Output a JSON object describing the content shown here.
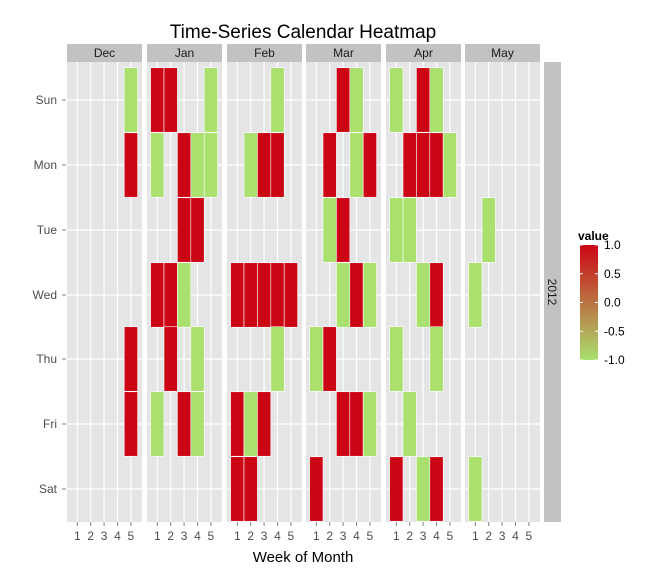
{
  "chart_data": {
    "type": "heatmap",
    "title": "Time-Series Calendar Heatmap",
    "xlabel": "Week of Month",
    "ylabel": "",
    "facet_row_label": "2012",
    "months": [
      "Dec",
      "Jan",
      "Feb",
      "Mar",
      "Apr",
      "May"
    ],
    "weekdays": [
      "Sun",
      "Mon",
      "Tue",
      "Wed",
      "Thu",
      "Fri",
      "Sat"
    ],
    "week_ticks": [
      "1",
      "2",
      "3",
      "4",
      "5"
    ],
    "legend": {
      "title": "value",
      "ticks": [
        "1.0",
        "0.5",
        "0.0",
        "-0.5",
        "-1.0"
      ],
      "tick_values": [
        1.0,
        0.5,
        0.0,
        -0.5,
        -1.0
      ],
      "range": [
        -1.0,
        1.0
      ],
      "low_color": "#a9e06e",
      "high_color": "#cc0515",
      "position": "right"
    },
    "colors": {
      "panel_bg": "#e5e5e5",
      "grid_line": "#ffffff",
      "strip_bg": "#c2c2c2",
      "tile_border": "#ffffff"
    },
    "cells": [
      {
        "month": "Dec",
        "weekday": "Sun",
        "week": 5,
        "value": -1
      },
      {
        "month": "Dec",
        "weekday": "Mon",
        "week": 5,
        "value": 1
      },
      {
        "month": "Dec",
        "weekday": "Thu",
        "week": 5,
        "value": 1
      },
      {
        "month": "Dec",
        "weekday": "Fri",
        "week": 5,
        "value": 1
      },
      {
        "month": "Jan",
        "weekday": "Sun",
        "week": 1,
        "value": 1
      },
      {
        "month": "Jan",
        "weekday": "Sun",
        "week": 2,
        "value": 1
      },
      {
        "month": "Jan",
        "weekday": "Sun",
        "week": 5,
        "value": -1
      },
      {
        "month": "Jan",
        "weekday": "Mon",
        "week": 1,
        "value": -1
      },
      {
        "month": "Jan",
        "weekday": "Mon",
        "week": 3,
        "value": 1
      },
      {
        "month": "Jan",
        "weekday": "Mon",
        "week": 4,
        "value": -1
      },
      {
        "month": "Jan",
        "weekday": "Mon",
        "week": 5,
        "value": -1
      },
      {
        "month": "Jan",
        "weekday": "Tue",
        "week": 3,
        "value": 1
      },
      {
        "month": "Jan",
        "weekday": "Tue",
        "week": 4,
        "value": 1
      },
      {
        "month": "Jan",
        "weekday": "Wed",
        "week": 1,
        "value": 1
      },
      {
        "month": "Jan",
        "weekday": "Wed",
        "week": 2,
        "value": 1
      },
      {
        "month": "Jan",
        "weekday": "Wed",
        "week": 3,
        "value": -1
      },
      {
        "month": "Jan",
        "weekday": "Thu",
        "week": 2,
        "value": 1
      },
      {
        "month": "Jan",
        "weekday": "Thu",
        "week": 4,
        "value": -1
      },
      {
        "month": "Jan",
        "weekday": "Fri",
        "week": 1,
        "value": -1
      },
      {
        "month": "Jan",
        "weekday": "Fri",
        "week": 3,
        "value": 1
      },
      {
        "month": "Jan",
        "weekday": "Fri",
        "week": 4,
        "value": -1
      },
      {
        "month": "Feb",
        "weekday": "Sun",
        "week": 4,
        "value": -1
      },
      {
        "month": "Feb",
        "weekday": "Mon",
        "week": 2,
        "value": -1
      },
      {
        "month": "Feb",
        "weekday": "Mon",
        "week": 3,
        "value": 1
      },
      {
        "month": "Feb",
        "weekday": "Mon",
        "week": 4,
        "value": 1
      },
      {
        "month": "Feb",
        "weekday": "Wed",
        "week": 1,
        "value": 1
      },
      {
        "month": "Feb",
        "weekday": "Wed",
        "week": 2,
        "value": 1
      },
      {
        "month": "Feb",
        "weekday": "Wed",
        "week": 3,
        "value": 1
      },
      {
        "month": "Feb",
        "weekday": "Wed",
        "week": 4,
        "value": 1
      },
      {
        "month": "Feb",
        "weekday": "Wed",
        "week": 5,
        "value": 1
      },
      {
        "month": "Feb",
        "weekday": "Thu",
        "week": 4,
        "value": -1
      },
      {
        "month": "Feb",
        "weekday": "Fri",
        "week": 1,
        "value": 1
      },
      {
        "month": "Feb",
        "weekday": "Fri",
        "week": 2,
        "value": -1
      },
      {
        "month": "Feb",
        "weekday": "Fri",
        "week": 3,
        "value": 1
      },
      {
        "month": "Feb",
        "weekday": "Sat",
        "week": 1,
        "value": 1
      },
      {
        "month": "Feb",
        "weekday": "Sat",
        "week": 2,
        "value": 1
      },
      {
        "month": "Mar",
        "weekday": "Sun",
        "week": 3,
        "value": 1
      },
      {
        "month": "Mar",
        "weekday": "Sun",
        "week": 4,
        "value": -1
      },
      {
        "month": "Mar",
        "weekday": "Mon",
        "week": 2,
        "value": 1
      },
      {
        "month": "Mar",
        "weekday": "Mon",
        "week": 4,
        "value": -1
      },
      {
        "month": "Mar",
        "weekday": "Mon",
        "week": 5,
        "value": 1
      },
      {
        "month": "Mar",
        "weekday": "Tue",
        "week": 2,
        "value": -1
      },
      {
        "month": "Mar",
        "weekday": "Tue",
        "week": 3,
        "value": 1
      },
      {
        "month": "Mar",
        "weekday": "Wed",
        "week": 3,
        "value": -1
      },
      {
        "month": "Mar",
        "weekday": "Wed",
        "week": 4,
        "value": 1
      },
      {
        "month": "Mar",
        "weekday": "Wed",
        "week": 5,
        "value": -1
      },
      {
        "month": "Mar",
        "weekday": "Thu",
        "week": 1,
        "value": -1
      },
      {
        "month": "Mar",
        "weekday": "Thu",
        "week": 2,
        "value": 1
      },
      {
        "month": "Mar",
        "weekday": "Fri",
        "week": 3,
        "value": 1
      },
      {
        "month": "Mar",
        "weekday": "Fri",
        "week": 4,
        "value": 1
      },
      {
        "month": "Mar",
        "weekday": "Fri",
        "week": 5,
        "value": -1
      },
      {
        "month": "Mar",
        "weekday": "Sat",
        "week": 1,
        "value": 1
      },
      {
        "month": "Apr",
        "weekday": "Sun",
        "week": 1,
        "value": -1
      },
      {
        "month": "Apr",
        "weekday": "Sun",
        "week": 3,
        "value": 1
      },
      {
        "month": "Apr",
        "weekday": "Sun",
        "week": 4,
        "value": -1
      },
      {
        "month": "Apr",
        "weekday": "Mon",
        "week": 2,
        "value": 1
      },
      {
        "month": "Apr",
        "weekday": "Mon",
        "week": 3,
        "value": 1
      },
      {
        "month": "Apr",
        "weekday": "Mon",
        "week": 4,
        "value": 1
      },
      {
        "month": "Apr",
        "weekday": "Mon",
        "week": 5,
        "value": -1
      },
      {
        "month": "Apr",
        "weekday": "Tue",
        "week": 1,
        "value": -1
      },
      {
        "month": "Apr",
        "weekday": "Tue",
        "week": 2,
        "value": -1
      },
      {
        "month": "Apr",
        "weekday": "Wed",
        "week": 3,
        "value": -1
      },
      {
        "month": "Apr",
        "weekday": "Wed",
        "week": 4,
        "value": 1
      },
      {
        "month": "Apr",
        "weekday": "Thu",
        "week": 1,
        "value": -1
      },
      {
        "month": "Apr",
        "weekday": "Thu",
        "week": 4,
        "value": -1
      },
      {
        "month": "Apr",
        "weekday": "Fri",
        "week": 2,
        "value": -1
      },
      {
        "month": "Apr",
        "weekday": "Sat",
        "week": 1,
        "value": 1
      },
      {
        "month": "Apr",
        "weekday": "Sat",
        "week": 3,
        "value": -1
      },
      {
        "month": "Apr",
        "weekday": "Sat",
        "week": 4,
        "value": 1
      },
      {
        "month": "May",
        "weekday": "Tue",
        "week": 2,
        "value": -1
      },
      {
        "month": "May",
        "weekday": "Wed",
        "week": 1,
        "value": -1
      },
      {
        "month": "May",
        "weekday": "Sat",
        "week": 1,
        "value": -1
      }
    ]
  }
}
